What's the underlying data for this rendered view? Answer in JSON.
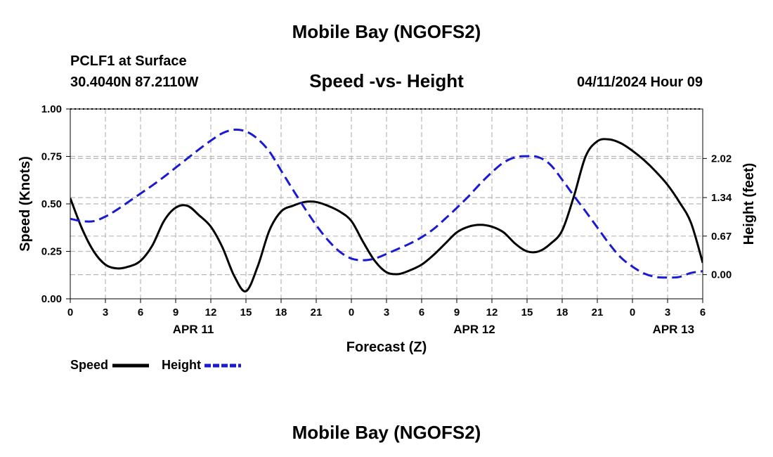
{
  "header": {
    "title": "Mobile Bay (NGOFS2)",
    "station": "PCLF1 at Surface",
    "coords": "30.4040N  87.2110W",
    "chart_title": "Speed -vs- Height",
    "datetime": "04/11/2024 Hour 09"
  },
  "footer": {
    "title": "Mobile Bay (NGOFS2)"
  },
  "legend": {
    "speed_label": "Speed",
    "height_label": "Height"
  },
  "colors": {
    "speed": "#000000",
    "height": "#1a1ad0",
    "grid": "#b8b8b8"
  },
  "chart_data": {
    "type": "line",
    "title": "Speed -vs- Height",
    "xlabel": "Forecast (Z)",
    "ylabel": "Speed (Knots)",
    "y2label": "Height (feet)",
    "x_range": [
      0,
      54
    ],
    "x_tick_values": [
      0,
      3,
      6,
      9,
      12,
      15,
      18,
      21,
      24,
      27,
      30,
      33,
      36,
      39,
      42,
      45,
      48,
      51,
      54
    ],
    "x_tick_labels": [
      "0",
      "3",
      "6",
      "9",
      "12",
      "15",
      "18",
      "21",
      "0",
      "3",
      "6",
      "9",
      "12",
      "15",
      "18",
      "21",
      "0",
      "3",
      "6"
    ],
    "date_labels": [
      {
        "x": 10.5,
        "label": "APR 11"
      },
      {
        "x": 34.5,
        "label": "APR 12"
      },
      {
        "x": 51.5,
        "label": "APR 13"
      }
    ],
    "ylim": [
      0,
      1.0
    ],
    "y_ticks": [
      0.0,
      0.25,
      0.5,
      0.75,
      1.0
    ],
    "y_tick_labels": [
      "0.00",
      "0.25",
      "0.50",
      "0.75",
      "1.00"
    ],
    "y2lim": [
      -0.42,
      2.88
    ],
    "y2_ticks": [
      0.0,
      0.67,
      1.34,
      2.02
    ],
    "y2_tick_labels": [
      "0.00",
      "0.67",
      "1.34",
      "2.02"
    ],
    "series": [
      {
        "name": "Speed",
        "axis": "left",
        "x": [
          0,
          1,
          2,
          3,
          4,
          5,
          6,
          7,
          8,
          9,
          10,
          11,
          12,
          13,
          14,
          15,
          16,
          17,
          18,
          19,
          20,
          21,
          22,
          23,
          24,
          25,
          26,
          27,
          28,
          29,
          30,
          31,
          32,
          33,
          34,
          35,
          36,
          37,
          38,
          39,
          40,
          41,
          42,
          43,
          44,
          45,
          46,
          47,
          48,
          49,
          50,
          51,
          52,
          53,
          54
        ],
        "values": [
          0.53,
          0.37,
          0.25,
          0.18,
          0.16,
          0.17,
          0.2,
          0.28,
          0.41,
          0.48,
          0.49,
          0.44,
          0.38,
          0.27,
          0.12,
          0.04,
          0.17,
          0.36,
          0.46,
          0.49,
          0.51,
          0.51,
          0.49,
          0.46,
          0.41,
          0.3,
          0.2,
          0.14,
          0.13,
          0.15,
          0.18,
          0.23,
          0.29,
          0.35,
          0.38,
          0.39,
          0.38,
          0.35,
          0.29,
          0.25,
          0.25,
          0.29,
          0.36,
          0.54,
          0.75,
          0.83,
          0.84,
          0.82,
          0.78,
          0.73,
          0.67,
          0.6,
          0.51,
          0.4,
          0.19
        ]
      },
      {
        "name": "Height",
        "axis": "right",
        "x": [
          0,
          1,
          2,
          3,
          4,
          5,
          6,
          7,
          8,
          9,
          10,
          11,
          12,
          13,
          14,
          15,
          16,
          17,
          18,
          19,
          20,
          21,
          22,
          23,
          24,
          25,
          26,
          27,
          28,
          29,
          30,
          31,
          32,
          33,
          34,
          35,
          36,
          37,
          38,
          39,
          40,
          41,
          42,
          43,
          44,
          45,
          46,
          47,
          48,
          49,
          50,
          51,
          52,
          53,
          54
        ],
        "values": [
          0.97,
          0.93,
          0.93,
          1.01,
          1.13,
          1.27,
          1.41,
          1.55,
          1.7,
          1.86,
          2.02,
          2.18,
          2.33,
          2.46,
          2.52,
          2.49,
          2.36,
          2.14,
          1.81,
          1.48,
          1.16,
          0.86,
          0.6,
          0.4,
          0.28,
          0.25,
          0.28,
          0.36,
          0.45,
          0.54,
          0.65,
          0.79,
          0.97,
          1.16,
          1.36,
          1.58,
          1.78,
          1.95,
          2.04,
          2.06,
          2.04,
          1.91,
          1.65,
          1.37,
          1.1,
          0.82,
          0.54,
          0.3,
          0.14,
          0.02,
          -0.04,
          -0.05,
          -0.04,
          0.03,
          0.06
        ]
      }
    ]
  }
}
